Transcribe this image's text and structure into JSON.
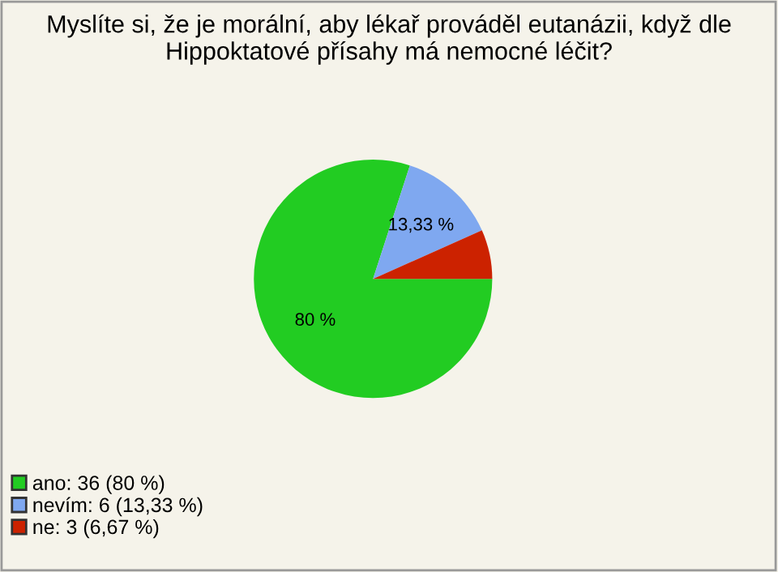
{
  "chart_data": {
    "type": "pie",
    "title": "Myslíte si, že je morální, aby lékař prováděl eutanázii, když dle Hippoktatové přísahy má nemocné léčit?",
    "categories": [
      "ano: 36 (80 %)",
      "nevím: 6 (13,33 %)",
      "ne: 3 (6,67 %)"
    ],
    "values": [
      80,
      13.33,
      6.67
    ],
    "value_labels": [
      "80 %",
      "13,33 %",
      null
    ],
    "colors": [
      "#22cc22",
      "#7fa8f0",
      "#cc2200"
    ],
    "legend": "bottom left"
  }
}
